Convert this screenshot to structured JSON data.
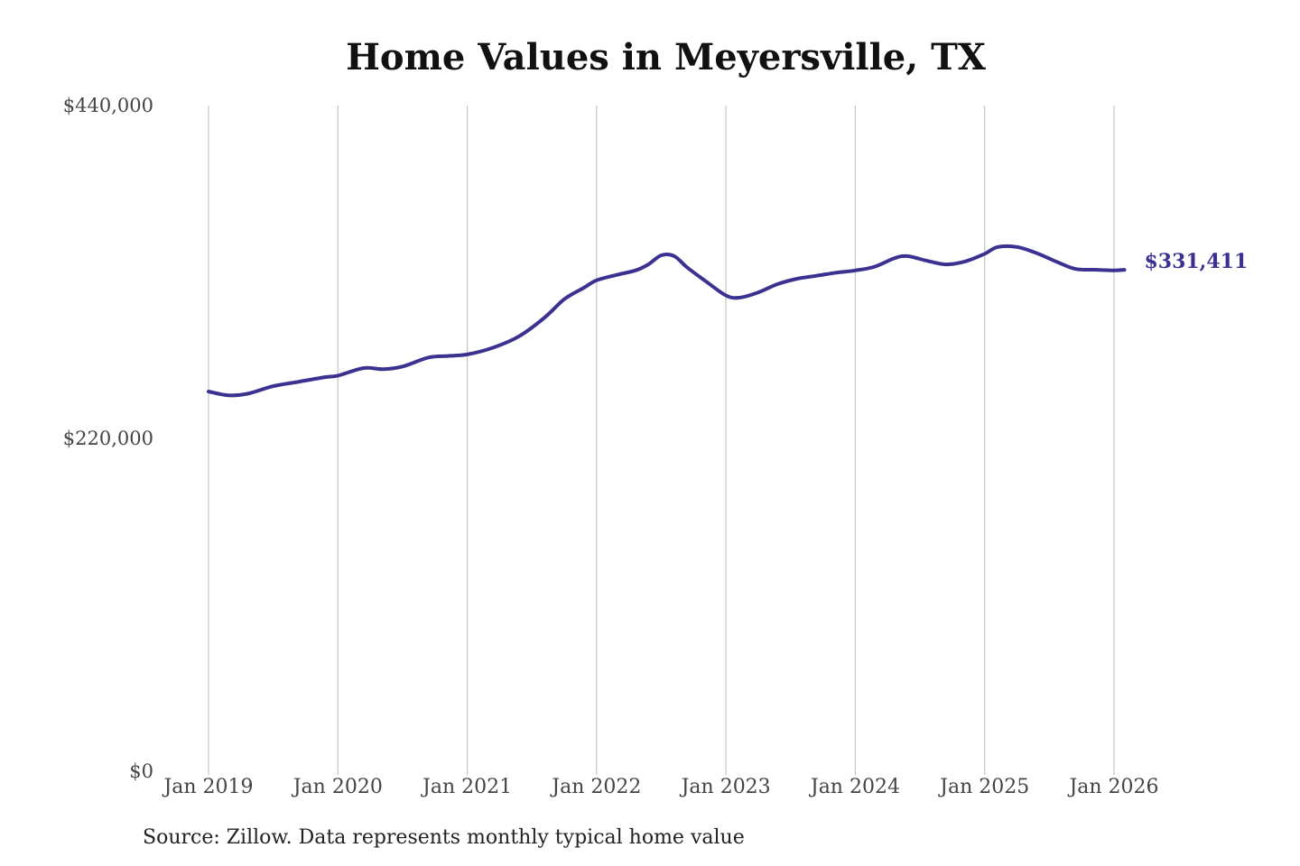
{
  "chart_data": {
    "type": "line",
    "title": "Home Values in Meyersville, TX",
    "xlabel": "",
    "ylabel": "",
    "ylim": [
      0,
      440000
    ],
    "yticks": [
      {
        "value": 0,
        "label": "$0"
      },
      {
        "value": 220000,
        "label": "$220,000"
      },
      {
        "value": 440000,
        "label": "$440,000"
      }
    ],
    "xticks": [
      {
        "value": 2019.0,
        "label": "Jan 2019"
      },
      {
        "value": 2020.0,
        "label": "Jan 2020"
      },
      {
        "value": 2021.0,
        "label": "Jan 2021"
      },
      {
        "value": 2022.0,
        "label": "Jan 2022"
      },
      {
        "value": 2023.0,
        "label": "Jan 2023"
      },
      {
        "value": 2024.0,
        "label": "Jan 2024"
      },
      {
        "value": 2025.0,
        "label": "Jan 2025"
      },
      {
        "value": 2026.0,
        "label": "Jan 2026"
      }
    ],
    "xlim": [
      2019.0,
      2026.1
    ],
    "grid": "vertical",
    "series": [
      {
        "name": "Typical home value",
        "color": "#3a3191",
        "end_label": "$331,411",
        "points": [
          [
            2019.0,
            251000
          ],
          [
            2019.15,
            248500
          ],
          [
            2019.3,
            249500
          ],
          [
            2019.5,
            254500
          ],
          [
            2019.7,
            257500
          ],
          [
            2019.9,
            260500
          ],
          [
            2020.0,
            261500
          ],
          [
            2020.2,
            266500
          ],
          [
            2020.35,
            265800
          ],
          [
            2020.5,
            267500
          ],
          [
            2020.7,
            273500
          ],
          [
            2020.85,
            274500
          ],
          [
            2021.0,
            275500
          ],
          [
            2021.2,
            280000
          ],
          [
            2021.4,
            287500
          ],
          [
            2021.6,
            300000
          ],
          [
            2021.75,
            312000
          ],
          [
            2021.9,
            319500
          ],
          [
            2022.0,
            324500
          ],
          [
            2022.15,
            328000
          ],
          [
            2022.3,
            331000
          ],
          [
            2022.4,
            335000
          ],
          [
            2022.5,
            341000
          ],
          [
            2022.6,
            340500
          ],
          [
            2022.7,
            333000
          ],
          [
            2022.85,
            323500
          ],
          [
            2023.0,
            314500
          ],
          [
            2023.1,
            313000
          ],
          [
            2023.25,
            316500
          ],
          [
            2023.4,
            322000
          ],
          [
            2023.55,
            325500
          ],
          [
            2023.7,
            327500
          ],
          [
            2023.85,
            329500
          ],
          [
            2024.0,
            331000
          ],
          [
            2024.15,
            333500
          ],
          [
            2024.3,
            339000
          ],
          [
            2024.4,
            340500
          ],
          [
            2024.55,
            337500
          ],
          [
            2024.7,
            335000
          ],
          [
            2024.85,
            337000
          ],
          [
            2025.0,
            342000
          ],
          [
            2025.1,
            346500
          ],
          [
            2025.25,
            346500
          ],
          [
            2025.4,
            342500
          ],
          [
            2025.55,
            337000
          ],
          [
            2025.7,
            332000
          ],
          [
            2025.85,
            331500
          ],
          [
            2026.0,
            331000
          ],
          [
            2026.08,
            331411
          ]
        ]
      }
    ]
  },
  "footer": {
    "source": "Source: Zillow. Data represents monthly typical home value"
  }
}
